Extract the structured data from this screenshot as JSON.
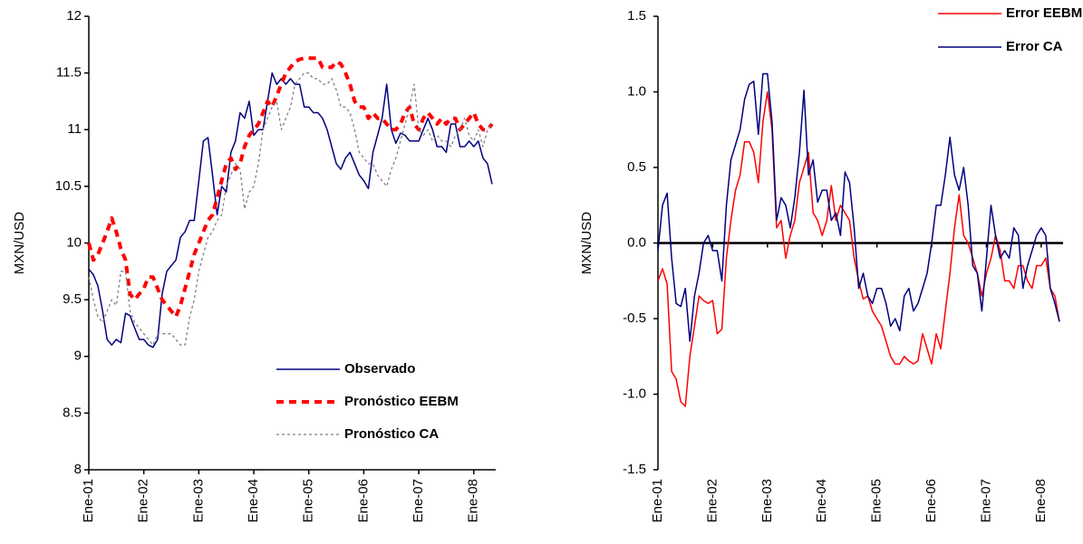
{
  "chart_data": [
    {
      "type": "line",
      "y_label": "MXN/USD",
      "legend": "lower right",
      "categories": [
        "Ene-01",
        null,
        null,
        null,
        null,
        null,
        null,
        null,
        null,
        null,
        null,
        null,
        "Ene-02",
        null,
        null,
        null,
        null,
        null,
        null,
        null,
        null,
        null,
        null,
        null,
        "Ene-03",
        null,
        null,
        null,
        null,
        null,
        null,
        null,
        null,
        null,
        null,
        null,
        "Ene-04",
        null,
        null,
        null,
        null,
        null,
        null,
        null,
        null,
        null,
        null,
        null,
        "Ene-05",
        null,
        null,
        null,
        null,
        null,
        null,
        null,
        null,
        null,
        null,
        null,
        "Ene-06",
        null,
        null,
        null,
        null,
        null,
        null,
        null,
        null,
        null,
        null,
        null,
        "Ene-07",
        null,
        null,
        null,
        null,
        null,
        null,
        null,
        null,
        null,
        null,
        null,
        "Ene-08",
        null,
        null,
        null,
        null
      ],
      "ylim": [
        8,
        12
      ],
      "yticks": [
        8,
        8.5,
        9,
        9.5,
        10,
        10.5,
        11,
        11.5,
        12
      ],
      "series": [
        {
          "name": "Observado",
          "color": "#000080",
          "style": "solid",
          "values": [
            9.77,
            9.72,
            9.62,
            9.4,
            9.15,
            9.1,
            9.15,
            9.12,
            9.38,
            9.36,
            9.25,
            9.15,
            9.15,
            9.1,
            9.08,
            9.15,
            9.55,
            9.75,
            9.8,
            9.85,
            10.05,
            10.1,
            10.2,
            10.2,
            10.55,
            10.9,
            10.93,
            10.6,
            10.25,
            10.5,
            10.45,
            10.8,
            10.9,
            11.15,
            11.1,
            11.25,
            10.95,
            11.0,
            11.0,
            11.25,
            11.5,
            11.4,
            11.45,
            11.4,
            11.45,
            11.4,
            11.4,
            11.2,
            11.2,
            11.15,
            11.15,
            11.1,
            11.0,
            10.85,
            10.7,
            10.65,
            10.75,
            10.8,
            10.7,
            10.6,
            10.55,
            10.48,
            10.8,
            10.95,
            11.1,
            11.4,
            11.0,
            10.88,
            10.97,
            10.95,
            10.9,
            10.9,
            10.9,
            11.0,
            11.1,
            11.0,
            10.85,
            10.85,
            10.8,
            11.05,
            11.05,
            10.85,
            10.85,
            10.9,
            10.85,
            10.9,
            10.75,
            10.7,
            10.52
          ]
        },
        {
          "name": "Pronóstico EEBM",
          "color": "#ff0000",
          "style": "thick-dashed",
          "values": [
            10.0,
            9.85,
            9.9,
            10.0,
            10.1,
            10.22,
            10.1,
            9.95,
            9.85,
            9.55,
            9.5,
            9.55,
            9.6,
            9.7,
            9.7,
            9.6,
            9.5,
            9.45,
            9.4,
            9.35,
            9.45,
            9.6,
            9.75,
            9.9,
            10.0,
            10.1,
            10.2,
            10.25,
            10.4,
            10.55,
            10.7,
            10.75,
            10.65,
            10.7,
            10.85,
            10.95,
            11.0,
            11.05,
            11.15,
            11.25,
            11.2,
            11.3,
            11.4,
            11.5,
            11.55,
            11.6,
            11.62,
            11.63,
            11.63,
            11.63,
            11.63,
            11.55,
            11.55,
            11.55,
            11.6,
            11.58,
            11.5,
            11.4,
            11.25,
            11.2,
            11.2,
            11.1,
            11.15,
            11.1,
            11.1,
            11.05,
            11.0,
            11.0,
            11.05,
            11.15,
            11.2,
            11.05,
            11.0,
            11.1,
            11.15,
            11.1,
            11.05,
            11.1,
            11.05,
            11.1,
            11.1,
            11.0,
            11.05,
            11.1,
            11.15,
            11.05,
            11.0,
            11.0,
            11.05
          ]
        },
        {
          "name": "Pronóstico CA",
          "color": "#808080",
          "style": "dotted",
          "values": [
            9.7,
            9.5,
            9.35,
            9.3,
            9.4,
            9.5,
            9.45,
            9.75,
            9.75,
            9.4,
            9.3,
            9.25,
            9.2,
            9.15,
            9.1,
            9.2,
            9.2,
            9.2,
            9.2,
            9.15,
            9.1,
            9.1,
            9.35,
            9.5,
            9.75,
            9.9,
            10.05,
            10.1,
            10.2,
            10.25,
            10.5,
            10.6,
            10.7,
            10.65,
            10.3,
            10.45,
            10.5,
            10.7,
            11.0,
            11.1,
            11.2,
            11.25,
            11.0,
            11.1,
            11.2,
            11.4,
            11.45,
            11.5,
            11.5,
            11.45,
            11.45,
            11.4,
            11.4,
            11.45,
            11.35,
            11.2,
            11.2,
            11.15,
            11.0,
            10.8,
            10.75,
            10.7,
            10.7,
            10.6,
            10.55,
            10.5,
            10.65,
            10.75,
            10.9,
            11.05,
            11.2,
            11.4,
            11.0,
            10.95,
            11.0,
            10.9,
            10.95,
            10.9,
            10.9,
            10.85,
            10.95,
            11.0,
            11.1,
            10.95,
            10.9,
            11.0,
            10.85,
            11.0,
            11.05
          ]
        }
      ]
    },
    {
      "type": "line",
      "y_label": "MXN/USD",
      "legend": "upper right",
      "categories": [
        "Ene-01",
        null,
        null,
        null,
        null,
        null,
        null,
        null,
        null,
        null,
        null,
        null,
        "Ene-02",
        null,
        null,
        null,
        null,
        null,
        null,
        null,
        null,
        null,
        null,
        null,
        "Ene-03",
        null,
        null,
        null,
        null,
        null,
        null,
        null,
        null,
        null,
        null,
        null,
        "Ene-04",
        null,
        null,
        null,
        null,
        null,
        null,
        null,
        null,
        null,
        null,
        null,
        "Ene-05",
        null,
        null,
        null,
        null,
        null,
        null,
        null,
        null,
        null,
        null,
        null,
        "Ene-06",
        null,
        null,
        null,
        null,
        null,
        null,
        null,
        null,
        null,
        null,
        null,
        "Ene-07",
        null,
        null,
        null,
        null,
        null,
        null,
        null,
        null,
        null,
        null,
        null,
        "Ene-08",
        null,
        null,
        null,
        null
      ],
      "ylim": [
        -1.5,
        1.5
      ],
      "yticks": [
        -1.5,
        {
          "value": -1,
          "label": "-1.0"
        },
        -0.5,
        {
          "value": 0,
          "label": "0.0"
        },
        0.5,
        {
          "value": 1,
          "label": "1.0"
        },
        1.5
      ],
      "series": [
        {
          "name": "Error EEBM",
          "color": "#ff0000",
          "style": "solid",
          "values": [
            -0.25,
            -0.17,
            -0.27,
            -0.85,
            -0.9,
            -1.05,
            -1.08,
            -0.75,
            -0.55,
            -0.35,
            -0.38,
            -0.4,
            -0.38,
            -0.6,
            -0.57,
            -0.1,
            0.15,
            0.35,
            0.45,
            0.67,
            0.67,
            0.6,
            0.4,
            0.8,
            1.0,
            0.75,
            0.1,
            0.15,
            -0.1,
            0.05,
            0.15,
            0.4,
            0.5,
            0.6,
            0.2,
            0.15,
            0.05,
            0.15,
            0.38,
            0.15,
            0.25,
            0.2,
            0.15,
            -0.1,
            -0.25,
            -0.37,
            -0.35,
            -0.45,
            -0.5,
            -0.55,
            -0.65,
            -0.75,
            -0.8,
            -0.8,
            -0.75,
            -0.78,
            -0.8,
            -0.78,
            -0.6,
            -0.7,
            -0.8,
            -0.6,
            -0.7,
            -0.45,
            -0.2,
            0.1,
            0.32,
            0.05,
            0.0,
            -0.1,
            -0.2,
            -0.35,
            -0.2,
            -0.1,
            0.05,
            -0.05,
            -0.25,
            -0.25,
            -0.3,
            -0.15,
            -0.15,
            -0.25,
            -0.3,
            -0.15,
            -0.15,
            -0.1,
            -0.3,
            -0.35,
            -0.52
          ]
        },
        {
          "name": "Error CA",
          "color": "#000080",
          "style": "solid",
          "values": [
            -0.05,
            0.25,
            0.33,
            -0.1,
            -0.4,
            -0.42,
            -0.3,
            -0.65,
            -0.35,
            -0.2,
            0.0,
            0.05,
            -0.05,
            -0.05,
            -0.25,
            0.25,
            0.55,
            0.65,
            0.75,
            0.95,
            1.05,
            1.07,
            0.72,
            1.12,
            1.12,
            0.8,
            0.15,
            0.3,
            0.25,
            0.1,
            0.3,
            0.6,
            1.01,
            0.45,
            0.55,
            0.27,
            0.35,
            0.35,
            0.15,
            0.2,
            0.05,
            0.47,
            0.4,
            0.1,
            -0.3,
            -0.2,
            -0.35,
            -0.4,
            -0.3,
            -0.3,
            -0.4,
            -0.55,
            -0.5,
            -0.58,
            -0.35,
            -0.3,
            -0.45,
            -0.4,
            -0.3,
            -0.2,
            0.0,
            0.25,
            0.25,
            0.45,
            0.7,
            0.45,
            0.35,
            0.5,
            0.25,
            -0.15,
            -0.2,
            -0.45,
            -0.1,
            0.25,
            0.05,
            -0.1,
            -0.05,
            -0.1,
            0.1,
            0.05,
            -0.3,
            -0.15,
            -0.05,
            0.05,
            0.1,
            0.05,
            -0.3,
            -0.4,
            -0.52
          ]
        }
      ]
    }
  ]
}
